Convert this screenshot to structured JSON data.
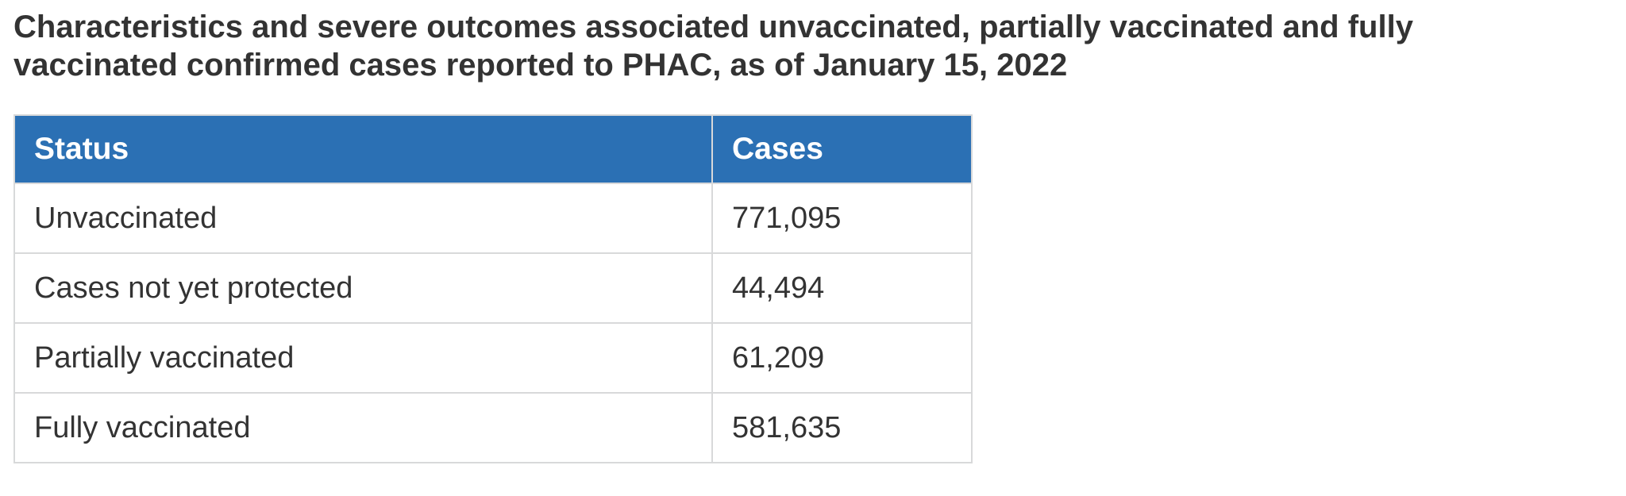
{
  "title": {
    "line1": "Characteristics and severe outcomes associated unvaccinated, partially vaccinated and fully",
    "line2": "vaccinated confirmed cases reported to PHAC, as of January 15, 2022"
  },
  "table": {
    "columns": [
      "Status",
      "Cases"
    ],
    "rows": [
      {
        "status": "Unvaccinated",
        "cases": "771,095"
      },
      {
        "status": "Cases not yet protected",
        "cases": "44,494"
      },
      {
        "status": "Partially vaccinated",
        "cases": "61,209"
      },
      {
        "status": "Fully vaccinated",
        "cases": "581,635"
      }
    ]
  },
  "colors": {
    "header_bg": "#2b70b4",
    "header_text": "#ffffff",
    "body_text": "#333333",
    "border_light": "#d8d9da"
  }
}
